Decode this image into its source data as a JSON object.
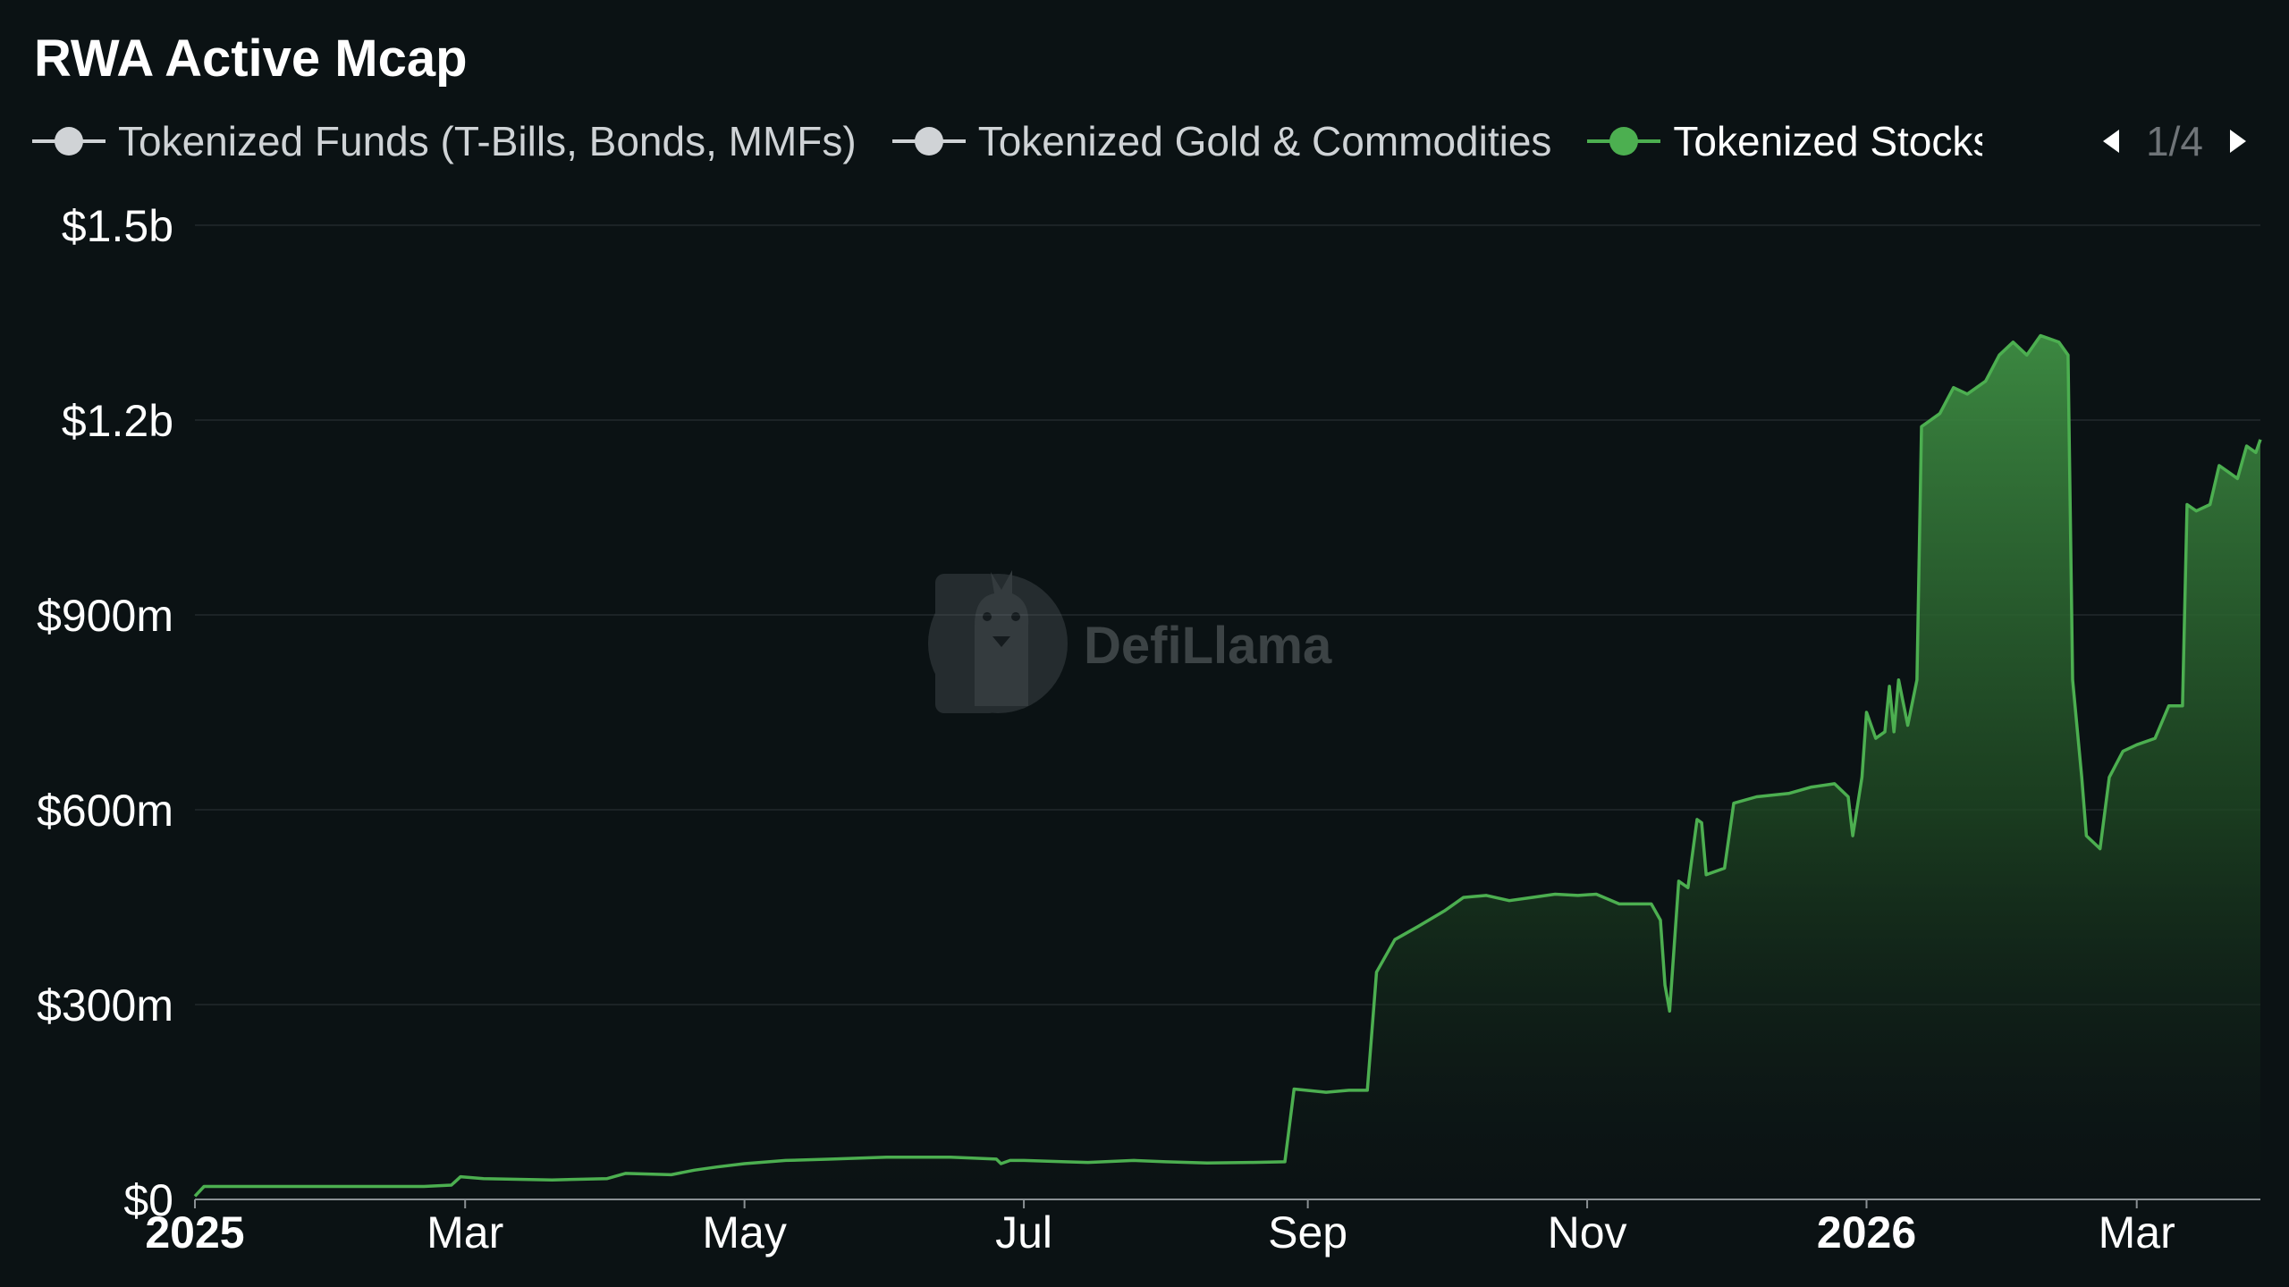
{
  "title": "RWA Active Mcap",
  "legend": {
    "items": [
      {
        "label": "Tokenized Funds (T-Bills, Bonds, MMFs)",
        "color": "#d0d3d6",
        "active": false
      },
      {
        "label": "Tokenized Gold & Commodities",
        "color": "#d0d3d6",
        "active": false
      },
      {
        "label": "Tokenized Stocks",
        "color": "#4caf50",
        "active": true
      }
    ],
    "page_indicator": "1/4",
    "prev_icon": "triangle-left-icon",
    "next_icon": "triangle-right-icon"
  },
  "watermark": {
    "text": "DefiLlama",
    "icon": "llama-logo-icon"
  },
  "colors": {
    "background": "#0b1214",
    "series_line": "#4caf50",
    "area_top": "#3e8e43",
    "grid": "#1c2326",
    "axis": "#8a9094",
    "tick_text": "#ffffff"
  },
  "chart_data": {
    "type": "area",
    "title": "RWA Active Mcap",
    "xlabel": "",
    "ylabel": "",
    "x_range": [
      "2025-01-01",
      "2026-03-28"
    ],
    "ylim": [
      0,
      1500000000
    ],
    "y_ticks": [
      {
        "value": 0,
        "label": "$0"
      },
      {
        "value": 300000000,
        "label": "$300m"
      },
      {
        "value": 600000000,
        "label": "$600m"
      },
      {
        "value": 900000000,
        "label": "$900m"
      },
      {
        "value": 1200000000,
        "label": "$1.2b"
      },
      {
        "value": 1500000000,
        "label": "$1.5b"
      }
    ],
    "x_ticks": [
      {
        "date": "2025-01-01",
        "label": "2025",
        "bold": true
      },
      {
        "date": "2025-03-01",
        "label": "Mar",
        "bold": false
      },
      {
        "date": "2025-05-01",
        "label": "May",
        "bold": false
      },
      {
        "date": "2025-07-01",
        "label": "Jul",
        "bold": false
      },
      {
        "date": "2025-09-01",
        "label": "Sep",
        "bold": false
      },
      {
        "date": "2025-11-01",
        "label": "Nov",
        "bold": false
      },
      {
        "date": "2026-01-01",
        "label": "2026",
        "bold": true
      },
      {
        "date": "2026-03-01",
        "label": "Mar",
        "bold": false
      }
    ],
    "grid": true,
    "legend_position": "top-left",
    "series": [
      {
        "name": "Tokenized Stocks",
        "color": "#4caf50",
        "points": [
          [
            "2025-01-01",
            5000000
          ],
          [
            "2025-01-03",
            20000000
          ],
          [
            "2025-01-15",
            20000000
          ],
          [
            "2025-02-01",
            20000000
          ],
          [
            "2025-02-20",
            20000000
          ],
          [
            "2025-02-26",
            22000000
          ],
          [
            "2025-02-28",
            35000000
          ],
          [
            "2025-03-05",
            32000000
          ],
          [
            "2025-03-20",
            30000000
          ],
          [
            "2025-04-01",
            32000000
          ],
          [
            "2025-04-05",
            40000000
          ],
          [
            "2025-04-15",
            38000000
          ],
          [
            "2025-04-20",
            45000000
          ],
          [
            "2025-04-25",
            50000000
          ],
          [
            "2025-05-01",
            55000000
          ],
          [
            "2025-05-10",
            60000000
          ],
          [
            "2025-05-20",
            62000000
          ],
          [
            "2025-06-01",
            65000000
          ],
          [
            "2025-06-15",
            65000000
          ],
          [
            "2025-06-25",
            62000000
          ],
          [
            "2025-06-26",
            55000000
          ],
          [
            "2025-06-28",
            60000000
          ],
          [
            "2025-07-01",
            60000000
          ],
          [
            "2025-07-10",
            58000000
          ],
          [
            "2025-07-15",
            57000000
          ],
          [
            "2025-07-25",
            60000000
          ],
          [
            "2025-08-01",
            58000000
          ],
          [
            "2025-08-10",
            56000000
          ],
          [
            "2025-08-20",
            57000000
          ],
          [
            "2025-08-27",
            58000000
          ],
          [
            "2025-08-29",
            170000000
          ],
          [
            "2025-09-05",
            165000000
          ],
          [
            "2025-09-10",
            168000000
          ],
          [
            "2025-09-14",
            168000000
          ],
          [
            "2025-09-16",
            350000000
          ],
          [
            "2025-09-20",
            400000000
          ],
          [
            "2025-09-25",
            420000000
          ],
          [
            "2025-10-01",
            445000000
          ],
          [
            "2025-10-05",
            465000000
          ],
          [
            "2025-10-10",
            468000000
          ],
          [
            "2025-10-15",
            460000000
          ],
          [
            "2025-10-20",
            465000000
          ],
          [
            "2025-10-25",
            470000000
          ],
          [
            "2025-10-30",
            468000000
          ],
          [
            "2025-11-03",
            470000000
          ],
          [
            "2025-11-08",
            455000000
          ],
          [
            "2025-11-15",
            455000000
          ],
          [
            "2025-11-17",
            430000000
          ],
          [
            "2025-11-18",
            330000000
          ],
          [
            "2025-11-19",
            290000000
          ],
          [
            "2025-11-21",
            490000000
          ],
          [
            "2025-11-23",
            480000000
          ],
          [
            "2025-11-25",
            585000000
          ],
          [
            "2025-11-26",
            580000000
          ],
          [
            "2025-11-27",
            500000000
          ],
          [
            "2025-12-01",
            510000000
          ],
          [
            "2025-12-03",
            610000000
          ],
          [
            "2025-12-08",
            620000000
          ],
          [
            "2025-12-15",
            625000000
          ],
          [
            "2025-12-20",
            635000000
          ],
          [
            "2025-12-25",
            640000000
          ],
          [
            "2025-12-28",
            620000000
          ],
          [
            "2025-12-29",
            560000000
          ],
          [
            "2025-12-31",
            650000000
          ],
          [
            "2026-01-01",
            750000000
          ],
          [
            "2026-01-03",
            710000000
          ],
          [
            "2026-01-05",
            720000000
          ],
          [
            "2026-01-06",
            790000000
          ],
          [
            "2026-01-07",
            720000000
          ],
          [
            "2026-01-08",
            800000000
          ],
          [
            "2026-01-10",
            730000000
          ],
          [
            "2026-01-12",
            800000000
          ],
          [
            "2026-01-13",
            1190000000
          ],
          [
            "2026-01-17",
            1210000000
          ],
          [
            "2026-01-20",
            1250000000
          ],
          [
            "2026-01-23",
            1240000000
          ],
          [
            "2026-01-27",
            1260000000
          ],
          [
            "2026-01-30",
            1300000000
          ],
          [
            "2026-02-02",
            1320000000
          ],
          [
            "2026-02-05",
            1300000000
          ],
          [
            "2026-02-08",
            1330000000
          ],
          [
            "2026-02-12",
            1320000000
          ],
          [
            "2026-02-14",
            1300000000
          ],
          [
            "2026-02-15",
            800000000
          ],
          [
            "2026-02-17",
            650000000
          ],
          [
            "2026-02-18",
            560000000
          ],
          [
            "2026-02-21",
            540000000
          ],
          [
            "2026-02-23",
            650000000
          ],
          [
            "2026-02-26",
            690000000
          ],
          [
            "2026-03-01",
            700000000
          ],
          [
            "2026-03-05",
            710000000
          ],
          [
            "2026-03-08",
            760000000
          ],
          [
            "2026-03-11",
            760000000
          ],
          [
            "2026-03-12",
            1070000000
          ],
          [
            "2026-03-14",
            1060000000
          ],
          [
            "2026-03-17",
            1070000000
          ],
          [
            "2026-03-19",
            1130000000
          ],
          [
            "2026-03-21",
            1120000000
          ],
          [
            "2026-03-23",
            1110000000
          ],
          [
            "2026-03-25",
            1160000000
          ],
          [
            "2026-03-27",
            1150000000
          ],
          [
            "2026-03-28",
            1170000000
          ]
        ]
      }
    ]
  }
}
